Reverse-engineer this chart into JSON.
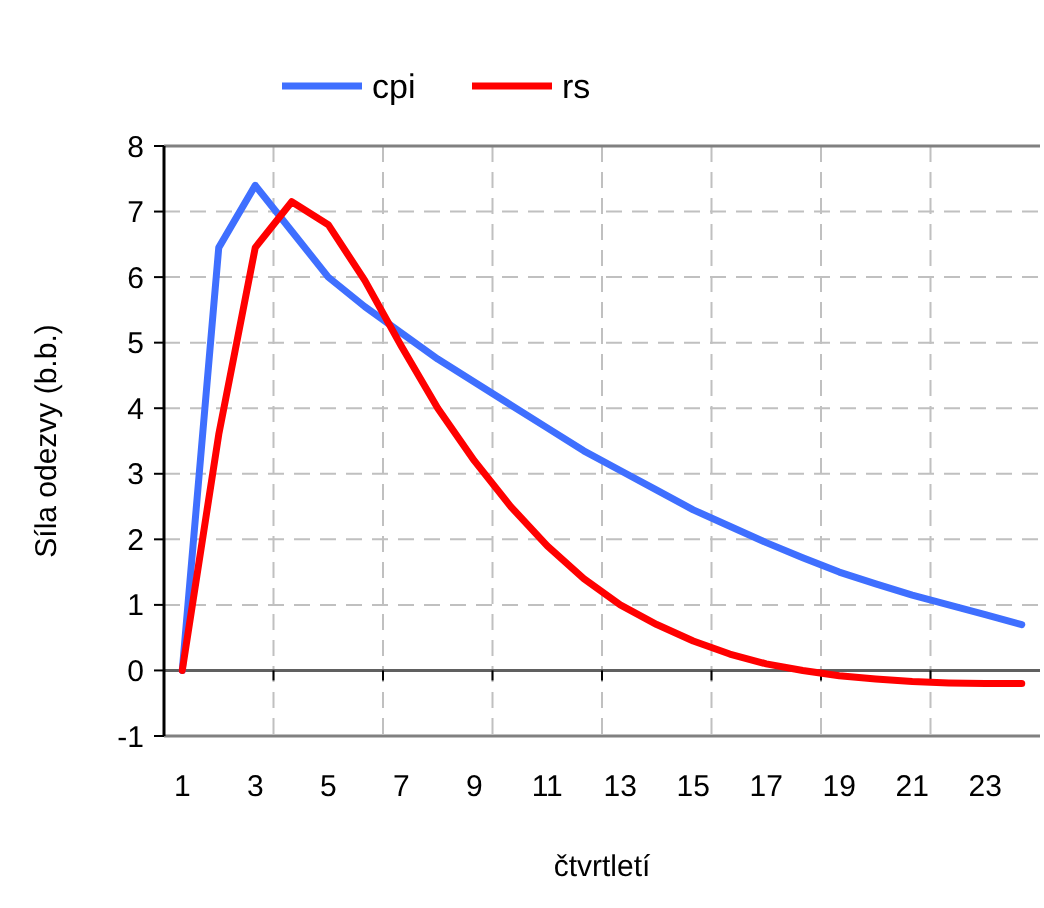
{
  "chart_data": {
    "type": "line",
    "xlabel": "čtvrtletí",
    "ylabel": "Síla odezvy (b.b.)",
    "x": [
      1,
      2,
      3,
      4,
      5,
      6,
      7,
      8,
      9,
      10,
      11,
      12,
      13,
      14,
      15,
      16,
      17,
      18,
      19,
      20,
      21,
      22,
      23,
      24
    ],
    "xlim": [
      0.5,
      24.5
    ],
    "xticks": [
      1,
      3,
      5,
      7,
      9,
      11,
      13,
      15,
      17,
      19,
      21,
      23,
      {
        "value": 3.5,
        "label": null
      },
      {
        "value": 6.5,
        "label": null
      },
      {
        "value": 9.5,
        "label": null
      },
      {
        "value": 12.5,
        "label": null
      },
      {
        "value": 15.5,
        "label": null
      },
      {
        "value": 18.5,
        "label": null
      },
      {
        "value": 21.5,
        "label": null
      }
    ],
    "series": [
      {
        "name": "cpi",
        "color": "#3f6fff",
        "values": [
          0,
          6.45,
          7.4,
          6.7,
          6.0,
          5.55,
          5.15,
          4.75,
          4.4,
          4.05,
          3.7,
          3.35,
          3.05,
          2.75,
          2.45,
          2.2,
          1.95,
          1.72,
          1.5,
          1.32,
          1.15,
          1.0,
          0.85,
          0.7
        ]
      },
      {
        "name": "rs",
        "color": "#ff0000",
        "values": [
          0,
          3.6,
          6.45,
          7.15,
          6.8,
          5.95,
          4.95,
          4.0,
          3.2,
          2.5,
          1.9,
          1.4,
          1.0,
          0.7,
          0.45,
          0.25,
          0.1,
          0.0,
          -0.08,
          -0.13,
          -0.17,
          -0.19,
          -0.2,
          -0.2
        ]
      }
    ],
    "ylim": [
      -1,
      8
    ],
    "yticks": [
      -1,
      0,
      1,
      2,
      3,
      4,
      5,
      6,
      7,
      8
    ],
    "grid": true,
    "legend": "top",
    "marker": "none",
    "line_style": "solid"
  }
}
